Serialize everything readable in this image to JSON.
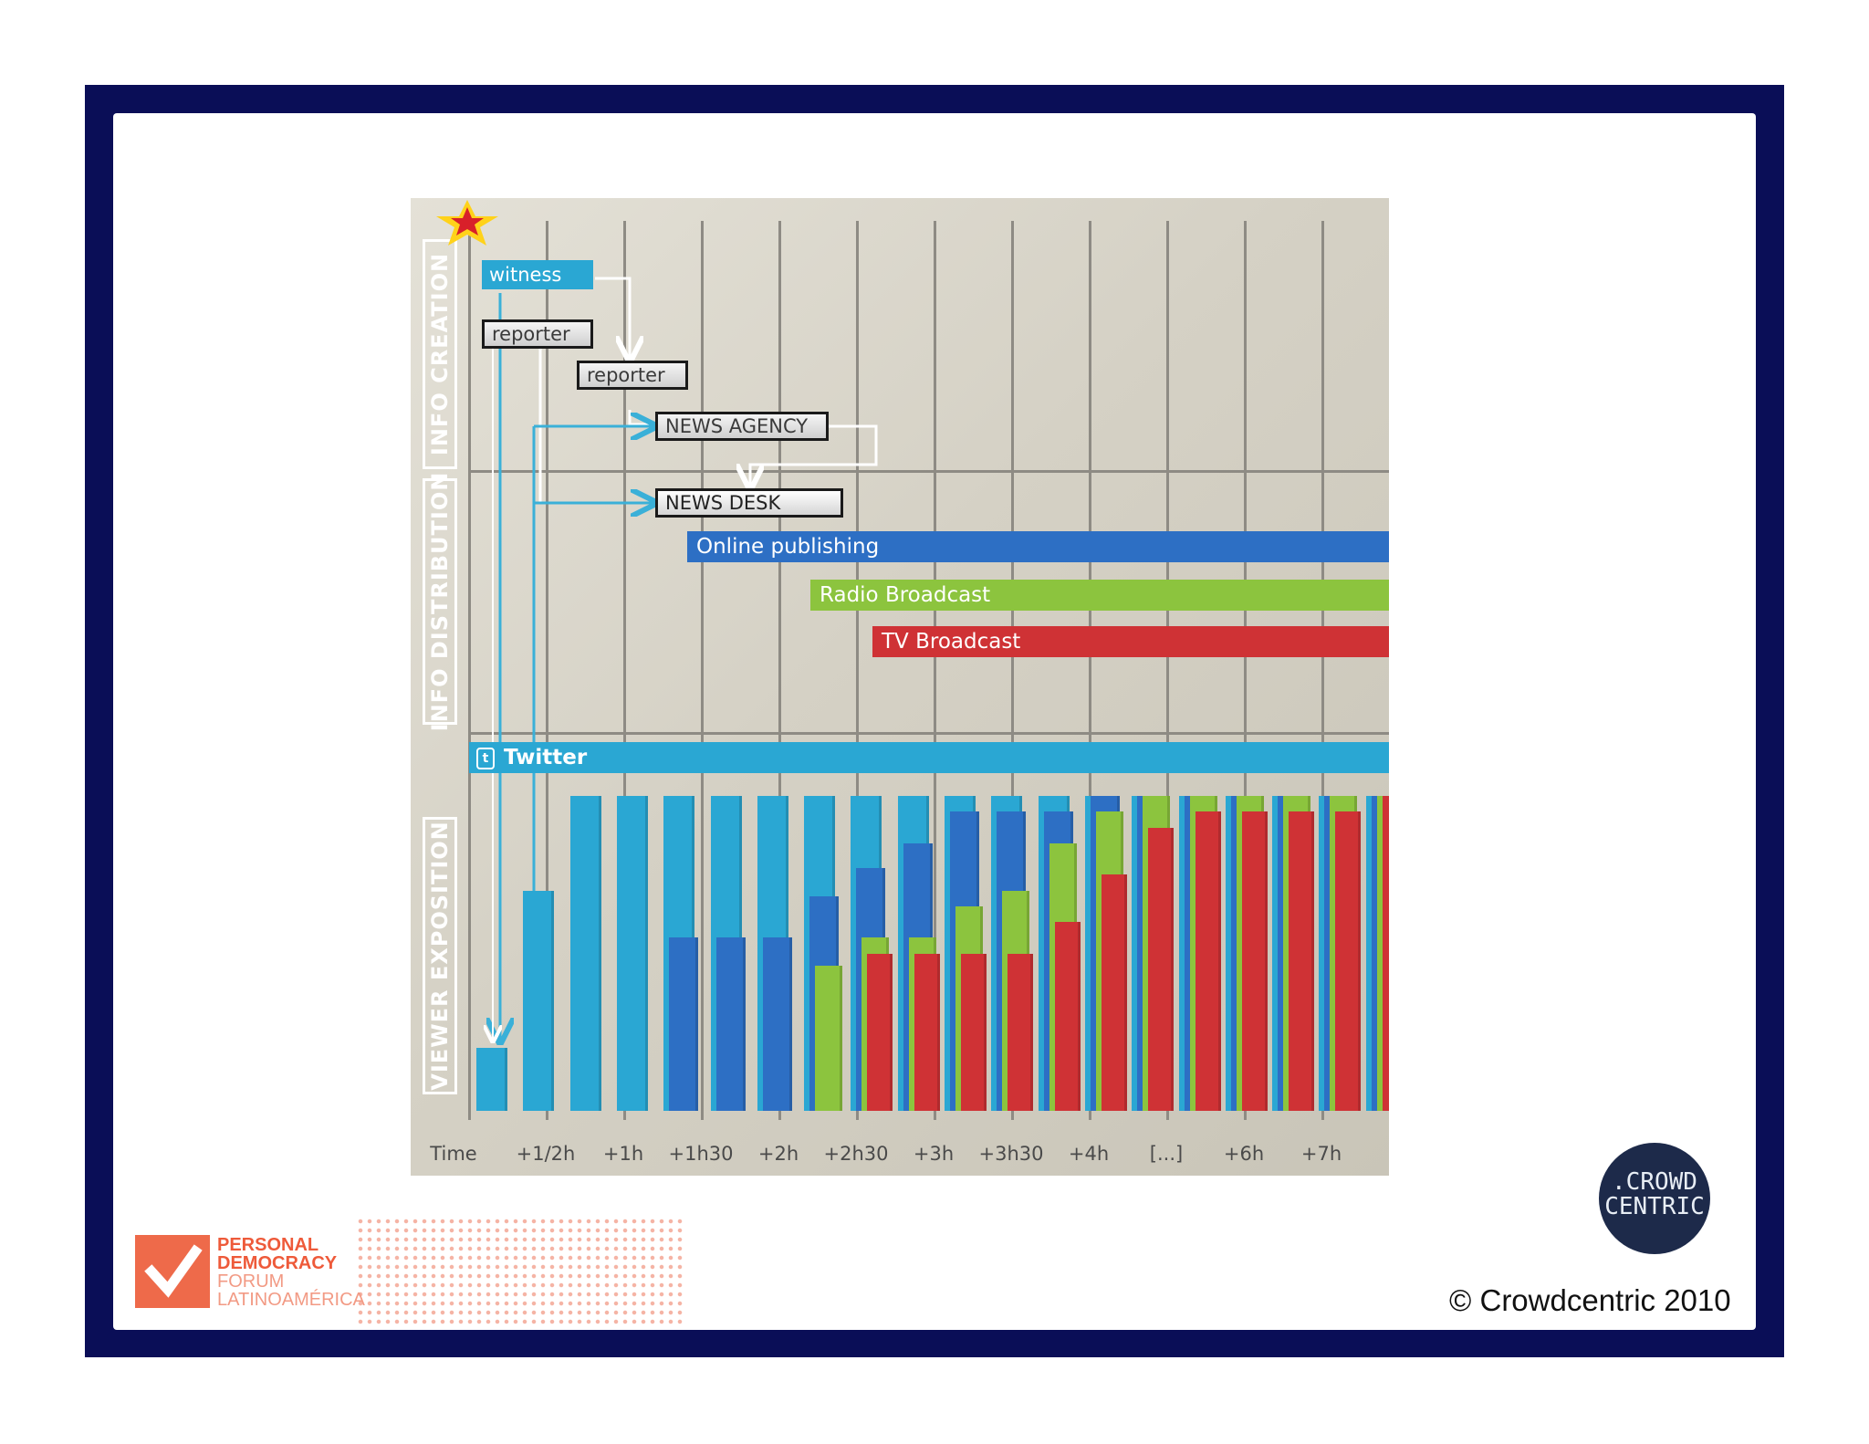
{
  "sections": {
    "creation": "INFO CREATION",
    "distribution": "INFO DISTRIBUTION",
    "exposition": "VIEWER EXPOSITION"
  },
  "nodes": {
    "witness": "witness",
    "reporter1": "reporter",
    "reporter2": "reporter",
    "news_agency": "NEWS AGENCY",
    "news_desk": "NEWS DESK"
  },
  "channels": {
    "online": "Online publishing",
    "radio": "Radio Broadcast",
    "tv": "TV Broadcast",
    "twitter": "Twitter"
  },
  "time_axis": {
    "label": "Time",
    "ticks": [
      "+1/2h",
      "+1h",
      "+1h30",
      "+2h",
      "+2h30",
      "+3h",
      "+3h30",
      "+4h",
      "[...]",
      "+6h",
      "+7h"
    ]
  },
  "colors": {
    "twitter": "#2aa7d3",
    "online": "#2d6fc4",
    "radio": "#8cc43e",
    "tv": "#cf3235",
    "frame": "#0a0e57"
  },
  "exposition_levels": {
    "twitter": [
      0.2,
      0.7,
      1,
      1,
      1,
      1,
      1,
      1,
      1,
      1,
      1,
      1,
      1,
      1,
      1,
      1,
      1,
      1,
      1,
      1
    ],
    "online": [
      0,
      0,
      0,
      0,
      0.55,
      0.55,
      0.55,
      0.68,
      0.77,
      0.85,
      0.95,
      0.95,
      0.95,
      1,
      1,
      1,
      1,
      1,
      1,
      1
    ],
    "radio": [
      0,
      0,
      0,
      0,
      0,
      0,
      0,
      0.46,
      0.55,
      0.55,
      0.65,
      0.7,
      0.85,
      0.95,
      1,
      1,
      1,
      1,
      1,
      1
    ],
    "tv": [
      0,
      0,
      0,
      0,
      0,
      0,
      0,
      0,
      0.5,
      0.5,
      0.5,
      0.5,
      0.6,
      0.75,
      0.9,
      0.95,
      0.95,
      0.95,
      0.95,
      1
    ]
  },
  "footer": {
    "crowd_line1": ".CROWD",
    "crowd_line2": "CENTRIC",
    "copyright": "© Crowdcentric 2010",
    "pdf_line1": "PERSONAL",
    "pdf_line2": "DEMOCRACY",
    "pdf_line3": "FORUM",
    "pdf_line4": "LATINOAMÉRICA"
  }
}
